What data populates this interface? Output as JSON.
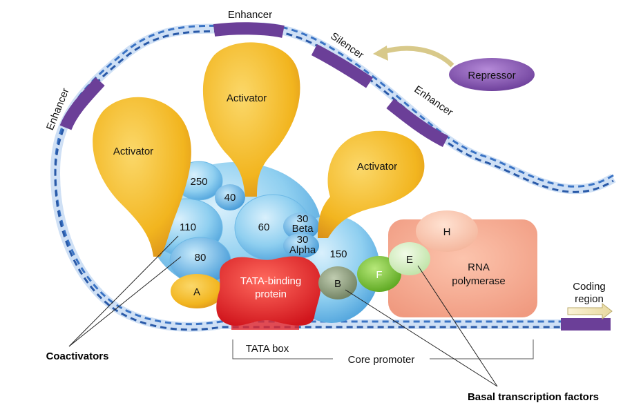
{
  "labels": {
    "enhancer_top": "Enhancer",
    "enhancer_left": "Enhancer",
    "enhancer_right": "Enhancer",
    "silencer": "Silencer",
    "repressor": "Repressor",
    "activator_left": "Activator",
    "activator_top": "Activator",
    "activator_right": "Activator",
    "sub_250": "250",
    "sub_40": "40",
    "sub_110": "110",
    "sub_60": "60",
    "sub_30_beta_num": "30",
    "sub_30_beta_name": "Beta",
    "sub_30_alpha_num": "30",
    "sub_30_alpha_name": "Alpha",
    "sub_80": "80",
    "sub_150": "150",
    "factor_a": "A",
    "factor_b": "B",
    "factor_f": "F",
    "factor_e": "E",
    "factor_h": "H",
    "tbp_line1": "TATA-binding",
    "tbp_line2": "protein",
    "rna_line1": "RNA",
    "rna_line2": "polymerase",
    "coding_line1": "Coding",
    "coding_line2": "region",
    "tata_box": "TATA box",
    "core_promoter": "Core promoter",
    "coactivators": "Coactivators",
    "basal": "Basal transcription factors"
  },
  "colors": {
    "dna_blue": "#3a73c4",
    "dna_light": "#cfe0f5",
    "enhancer_purple": "#6b3f98",
    "activator_yellow": "#f2b51f",
    "coactivator_blue": "#8fcff0",
    "tbp_red": "#e3262c",
    "rna_pink": "#f4a48a",
    "f_green": "#7cc23a",
    "b_grey": "#8a9a7a",
    "repressor_purple": "#7a4aa8"
  }
}
